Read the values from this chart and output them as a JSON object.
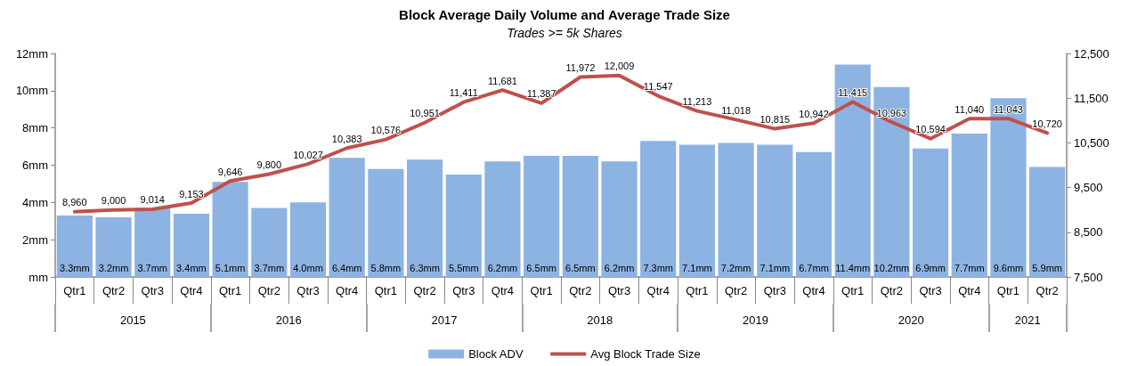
{
  "chart_data": {
    "type": "bar",
    "title": "Block Average Daily Volume and Average Trade Size",
    "subtitle": "Trades >= 5k Shares",
    "categories": [
      "Qtr1",
      "Qtr2",
      "Qtr3",
      "Qtr4",
      "Qtr1",
      "Qtr2",
      "Qtr3",
      "Qtr4",
      "Qtr1",
      "Qtr2",
      "Qtr3",
      "Qtr4",
      "Qtr1",
      "Qtr2",
      "Qtr3",
      "Qtr4",
      "Qtr1",
      "Qtr2",
      "Qtr3",
      "Qtr4",
      "Qtr1",
      "Qtr2",
      "Qtr3",
      "Qtr4",
      "Qtr1",
      "Qtr2"
    ],
    "annotations": [
      "2015",
      "2016",
      "2017",
      "2018",
      "2019",
      "2020",
      "2021"
    ],
    "series": [
      {
        "name": "Block ADV",
        "color": "#8db3e2",
        "values": [
          3.3,
          3.2,
          3.7,
          3.4,
          5.1,
          3.7,
          4.0,
          6.4,
          5.8,
          6.3,
          5.5,
          6.2,
          6.5,
          6.5,
          6.2,
          7.3,
          7.1,
          7.2,
          7.1,
          6.7,
          11.4,
          10.2,
          6.9,
          7.7,
          9.6,
          5.9
        ],
        "value_labels": [
          "3.3mm",
          "3.2mm",
          "3.7mm",
          "3.4mm",
          "5.1mm",
          "3.7mm",
          "4.0mm",
          "6.4mm",
          "5.8mm",
          "6.3mm",
          "5.5mm",
          "6.2mm",
          "6.5mm",
          "6.5mm",
          "6.2mm",
          "7.3mm",
          "7.1mm",
          "7.2mm",
          "7.1mm",
          "6.7mm",
          "11.4mm",
          "10.2mm",
          "6.9mm",
          "7.7mm",
          "9.6mm",
          "5.9mm"
        ]
      },
      {
        "name": "Avg Block Trade Size",
        "type": "line",
        "axis": "y2",
        "color": "#c0504d",
        "values": [
          8960,
          9000,
          9014,
          9153,
          9646,
          9800,
          10027,
          10383,
          10576,
          10951,
          11411,
          11681,
          11387,
          11972,
          12009,
          11547,
          11213,
          11018,
          10815,
          10942,
          11415,
          10963,
          10594,
          11040,
          11043,
          10720
        ],
        "value_labels": [
          "8,960",
          "9,000",
          "9,014",
          "9,153",
          "9,646",
          "9,800",
          "10,027",
          "10,383",
          "10,576",
          "10,951",
          "11,411",
          "11,681",
          "11,387",
          "11,972",
          "12,009",
          "11,547",
          "11,213",
          "11,018",
          "10,815",
          "10,942",
          "11,415",
          "10,963",
          "10,594",
          "11,040",
          "11,043",
          "10,720"
        ]
      }
    ],
    "ylim": [
      0,
      12
    ],
    "yticks": [
      {
        "value": 0,
        "label": "mm"
      },
      {
        "value": 2,
        "label": "2mm"
      },
      {
        "value": 4,
        "label": "4mm"
      },
      {
        "value": 6,
        "label": "6mm"
      },
      {
        "value": 8,
        "label": "8mm"
      },
      {
        "value": 10,
        "label": "10mm"
      },
      {
        "value": 12,
        "label": "12mm"
      }
    ],
    "y2lim": [
      7500,
      12500
    ],
    "y2ticks": [
      {
        "value": 7500,
        "label": "7,500"
      },
      {
        "value": 8500,
        "label": "8,500"
      },
      {
        "value": 9500,
        "label": "9,500"
      },
      {
        "value": 10500,
        "label": "10,500"
      },
      {
        "value": 11500,
        "label": "11,500"
      },
      {
        "value": 12500,
        "label": "12,500"
      }
    ],
    "marker": "none",
    "legend": "bottom"
  }
}
